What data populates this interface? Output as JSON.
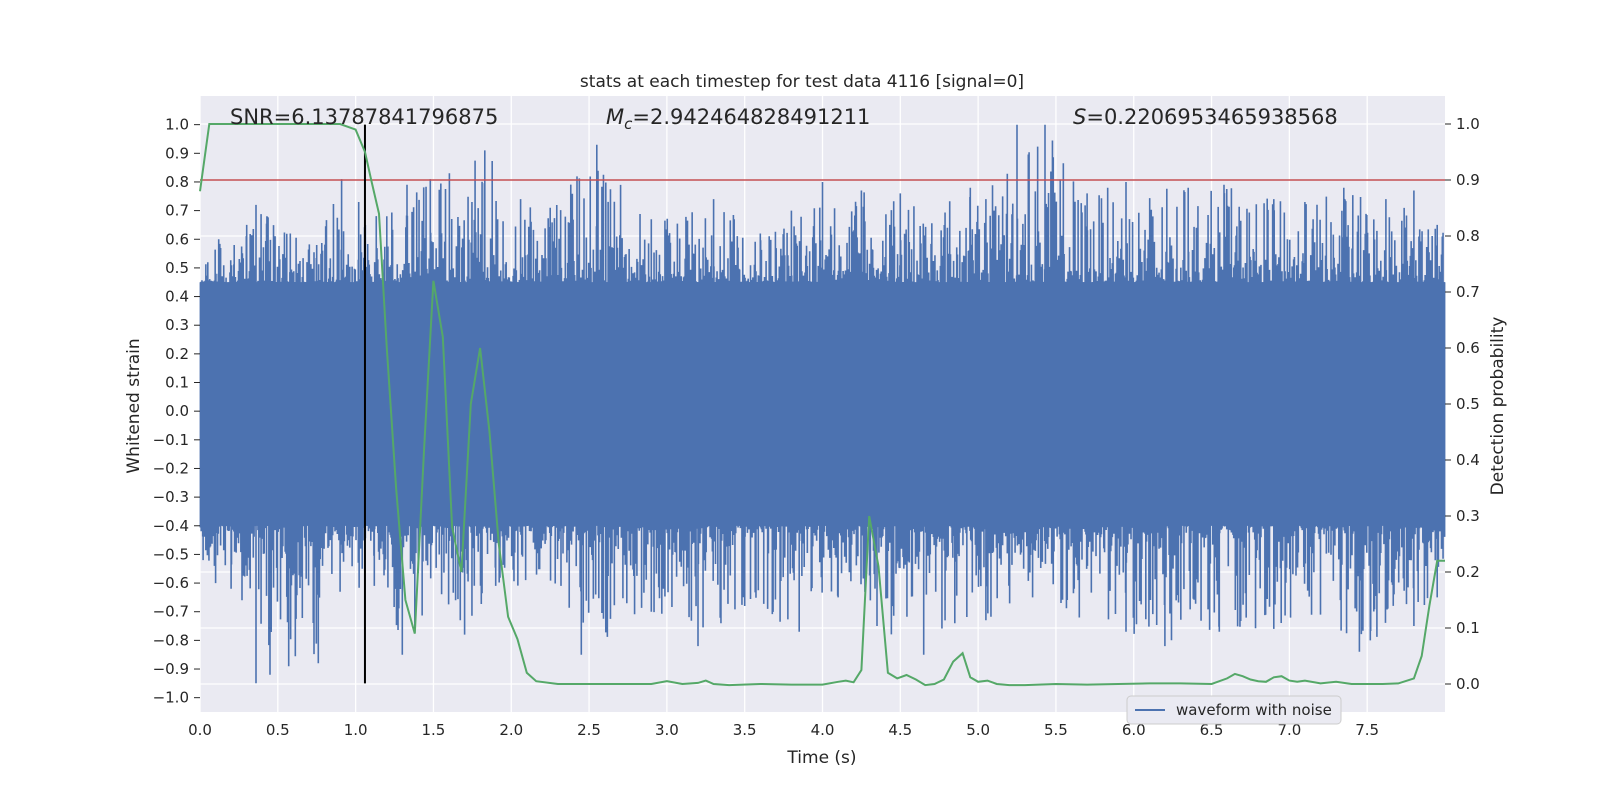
{
  "chart_data": {
    "type": "line",
    "title": "stats at each timestep for test data 4116 [signal=0]",
    "xlabel": "Time (s)",
    "ylabel": "Whitened strain",
    "y2label": "Detection probability",
    "xlim": [
      0.0,
      8.0
    ],
    "ylim": [
      -1.05,
      1.1
    ],
    "y2lim": [
      -0.05,
      1.05
    ],
    "xticks": [
      "0.0",
      "0.5",
      "1.0",
      "1.5",
      "2.0",
      "2.5",
      "3.0",
      "3.5",
      "4.0",
      "4.5",
      "5.0",
      "5.5",
      "6.0",
      "6.5",
      "7.0",
      "7.5"
    ],
    "yticks": [
      "1.0",
      "0.9",
      "0.8",
      "0.7",
      "0.6",
      "0.5",
      "0.4",
      "0.3",
      "0.2",
      "0.1",
      "0.0",
      "−0.1",
      "−0.2",
      "−0.3",
      "−0.4",
      "−0.5",
      "−0.6",
      "−0.7",
      "−0.8",
      "−0.9",
      "−1.0"
    ],
    "y2ticks": [
      "1.0",
      "0.9",
      "0.8",
      "0.7",
      "0.6",
      "0.5",
      "0.4",
      "0.3",
      "0.2",
      "0.1",
      "0.0"
    ],
    "annotations": {
      "snr": "SNR=6.13787841796875",
      "mc_symbol": "M",
      "mc_sub": "c",
      "mc_value": "=2.942464828491211",
      "s_symbol": "S",
      "s_value": "=0.2206953465938568"
    },
    "threshold": 0.9,
    "marker_time": 1.06,
    "marker_ylim": [
      -0.95,
      1.0
    ],
    "series": [
      {
        "name": "waveform with noise",
        "color": "#4c72b0",
        "envelope": {
          "band_upper": 0.45,
          "band_lower": -0.4,
          "peaks_up": [
            [
              0.05,
              0.52
            ],
            [
              0.12,
              0.6
            ],
            [
              0.22,
              0.58
            ],
            [
              0.3,
              0.65
            ],
            [
              0.36,
              0.72
            ],
            [
              0.43,
              0.68
            ],
            [
              0.58,
              0.62
            ],
            [
              0.75,
              0.58
            ],
            [
              0.91,
              0.81
            ],
            [
              1.02,
              0.73
            ],
            [
              1.2,
              0.68
            ],
            [
              1.33,
              0.79
            ],
            [
              1.48,
              0.81
            ],
            [
              1.83,
              0.91
            ],
            [
              2.06,
              0.74
            ],
            [
              2.25,
              0.71
            ],
            [
              2.55,
              0.93
            ],
            [
              2.9,
              0.67
            ],
            [
              3.3,
              0.74
            ],
            [
              3.6,
              0.62
            ],
            [
              3.8,
              0.7
            ],
            [
              4.0,
              0.8
            ],
            [
              4.25,
              0.77
            ],
            [
              4.5,
              0.76
            ],
            [
              4.95,
              0.78
            ],
            [
              5.05,
              0.74
            ],
            [
              5.25,
              1.0
            ],
            [
              5.43,
              1.0
            ],
            [
              5.7,
              0.76
            ],
            [
              5.95,
              0.8
            ],
            [
              6.35,
              0.78
            ],
            [
              6.58,
              0.79
            ],
            [
              6.9,
              0.74
            ],
            [
              7.1,
              0.73
            ],
            [
              7.35,
              0.78
            ],
            [
              7.62,
              0.74
            ],
            [
              7.8,
              0.77
            ],
            [
              7.95,
              0.65
            ]
          ],
          "peaks_down": [
            [
              0.02,
              -0.52
            ],
            [
              0.1,
              -0.6
            ],
            [
              0.2,
              -0.62
            ],
            [
              0.27,
              -0.66
            ],
            [
              0.36,
              -0.95
            ],
            [
              0.45,
              -0.92
            ],
            [
              0.57,
              -0.89
            ],
            [
              0.76,
              -0.88
            ],
            [
              0.9,
              -0.63
            ],
            [
              1.12,
              -0.61
            ],
            [
              1.3,
              -0.85
            ],
            [
              1.38,
              -0.77
            ],
            [
              1.7,
              -0.78
            ],
            [
              1.9,
              -0.61
            ],
            [
              2.32,
              -0.61
            ],
            [
              2.45,
              -0.85
            ],
            [
              2.9,
              -0.7
            ],
            [
              3.2,
              -0.82
            ],
            [
              3.5,
              -0.68
            ],
            [
              3.85,
              -0.77
            ],
            [
              4.1,
              -0.65
            ],
            [
              4.35,
              -0.75
            ],
            [
              4.65,
              -0.85
            ],
            [
              4.85,
              -0.74
            ],
            [
              5.05,
              -0.73
            ],
            [
              5.35,
              -0.65
            ],
            [
              5.65,
              -0.72
            ],
            [
              5.95,
              -0.77
            ],
            [
              6.2,
              -0.82
            ],
            [
              6.55,
              -0.77
            ],
            [
              6.9,
              -0.76
            ],
            [
              7.2,
              -0.71
            ],
            [
              7.45,
              -0.84
            ],
            [
              7.52,
              -0.8
            ],
            [
              7.8,
              -0.75
            ],
            [
              7.95,
              -0.65
            ]
          ]
        }
      },
      {
        "name": "",
        "color": "#55a868",
        "axis": "right",
        "x": [
          0.0,
          0.06,
          0.3,
          0.6,
          0.9,
          1.0,
          1.06,
          1.1,
          1.15,
          1.2,
          1.26,
          1.32,
          1.38,
          1.44,
          1.5,
          1.56,
          1.62,
          1.68,
          1.74,
          1.8,
          1.86,
          1.92,
          1.98,
          2.04,
          2.1,
          2.16,
          2.3,
          2.5,
          2.7,
          2.9,
          3.0,
          3.1,
          3.2,
          3.25,
          3.3,
          3.4,
          3.6,
          3.8,
          4.0,
          4.1,
          4.15,
          4.2,
          4.25,
          4.3,
          4.36,
          4.42,
          4.48,
          4.54,
          4.6,
          4.66,
          4.72,
          4.78,
          4.84,
          4.9,
          4.95,
          5.0,
          5.06,
          5.12,
          5.2,
          5.3,
          5.5,
          5.7,
          5.9,
          6.1,
          6.3,
          6.5,
          6.6,
          6.65,
          6.7,
          6.75,
          6.8,
          6.85,
          6.9,
          6.95,
          7.0,
          7.05,
          7.1,
          7.2,
          7.3,
          7.4,
          7.5,
          7.6,
          7.7,
          7.8,
          7.85,
          7.9,
          7.95,
          8.0
        ],
        "y": [
          0.88,
          1.0,
          1.0,
          1.0,
          1.0,
          0.99,
          0.95,
          0.9,
          0.84,
          0.6,
          0.35,
          0.15,
          0.09,
          0.42,
          0.72,
          0.62,
          0.28,
          0.2,
          0.5,
          0.6,
          0.45,
          0.25,
          0.12,
          0.08,
          0.02,
          0.005,
          0.0,
          0.0,
          0.0,
          0.0,
          0.005,
          0.0,
          0.002,
          0.006,
          0.0,
          -0.002,
          0.0,
          -0.001,
          -0.001,
          0.004,
          0.006,
          0.003,
          0.025,
          0.3,
          0.21,
          0.02,
          0.01,
          0.016,
          0.008,
          -0.002,
          0.0,
          0.008,
          0.04,
          0.055,
          0.012,
          0.004,
          0.006,
          0.0,
          -0.002,
          -0.002,
          0.0,
          -0.001,
          0.0,
          0.001,
          0.001,
          0.0,
          0.01,
          0.018,
          0.014,
          0.008,
          0.005,
          0.004,
          0.012,
          0.014,
          0.006,
          0.004,
          0.006,
          0.001,
          0.004,
          0.0,
          0.0,
          0.0,
          0.001,
          0.01,
          0.05,
          0.14,
          0.22,
          0.22
        ]
      }
    ],
    "legend": {
      "position": "lower-right",
      "entries": [
        "waveform with noise"
      ]
    }
  }
}
